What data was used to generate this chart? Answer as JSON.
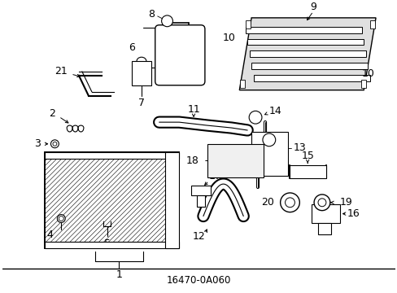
{
  "background_color": "#ffffff",
  "line_color": "#000000",
  "text_color": "#000000",
  "font_size": 8.5,
  "fig_w": 4.89,
  "fig_h": 3.6,
  "dpi": 100
}
